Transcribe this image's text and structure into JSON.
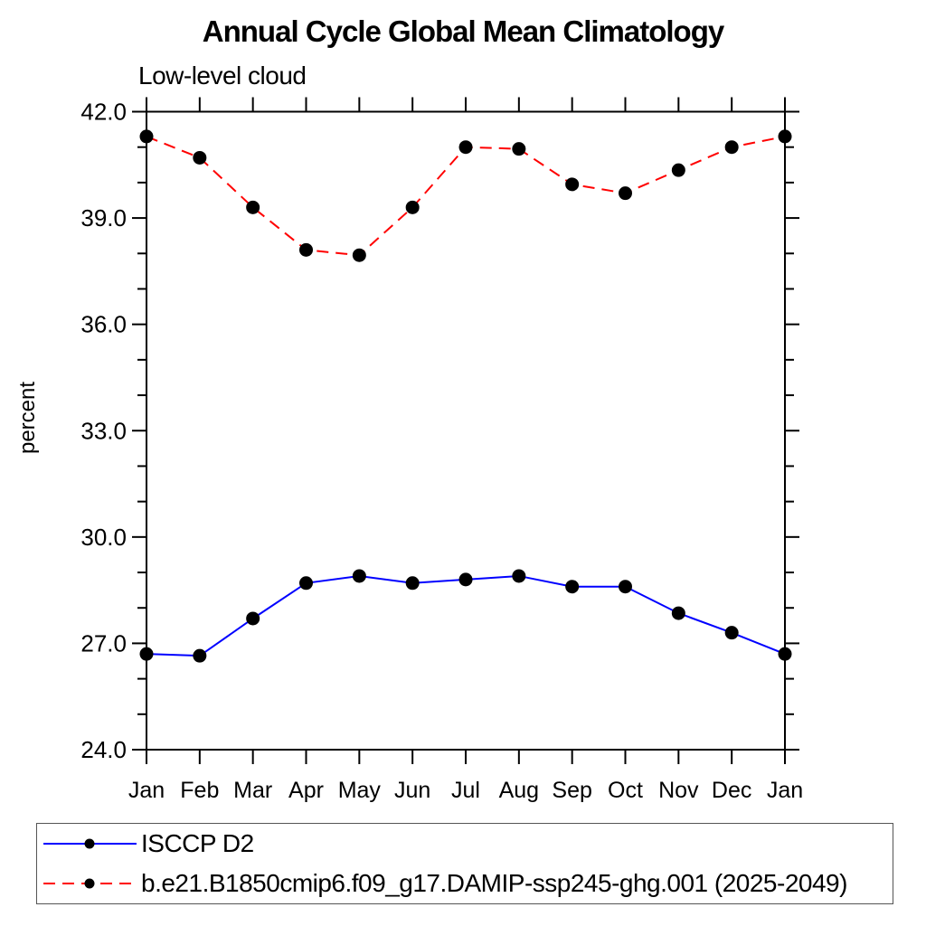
{
  "page": {
    "background": "#ffffff"
  },
  "chart_data": {
    "type": "line",
    "title": "Annual Cycle Global Mean Climatology",
    "subtitle": "Low-level cloud",
    "ylabel": "percent",
    "xlabel": "",
    "categories": [
      "Jan",
      "Feb",
      "Mar",
      "Apr",
      "May",
      "Jun",
      "Jul",
      "Aug",
      "Sep",
      "Oct",
      "Nov",
      "Dec",
      "Jan"
    ],
    "ylim": [
      24.0,
      42.0
    ],
    "yticks": {
      "major_values": [
        24,
        27,
        30,
        33,
        36,
        39,
        42
      ],
      "major_labels": [
        "24.0",
        "27.0",
        "30.0",
        "33.0",
        "36.0",
        "39.0",
        "42.0"
      ],
      "minor_step": 1.0
    },
    "grid": false,
    "legend_position": "bottom-left",
    "axis_color": "#000000",
    "series": [
      {
        "name": "ISCCP D2",
        "color": "#0000ff",
        "line_style": "solid",
        "marker": "circle",
        "marker_color": "#000000",
        "values": [
          26.7,
          26.65,
          27.7,
          28.7,
          28.9,
          28.7,
          28.8,
          28.9,
          28.6,
          28.6,
          27.85,
          27.3,
          26.7
        ]
      },
      {
        "name": "b.e21.B1850cmip6.f09_g17.DAMIP-ssp245-ghg.001 (2025-2049)",
        "color": "#ff0000",
        "line_style": "dashed",
        "marker": "circle",
        "marker_color": "#000000",
        "values": [
          41.3,
          40.7,
          39.3,
          38.1,
          37.95,
          39.3,
          41.0,
          40.95,
          39.95,
          39.7,
          40.35,
          41.0,
          41.3
        ]
      }
    ]
  }
}
